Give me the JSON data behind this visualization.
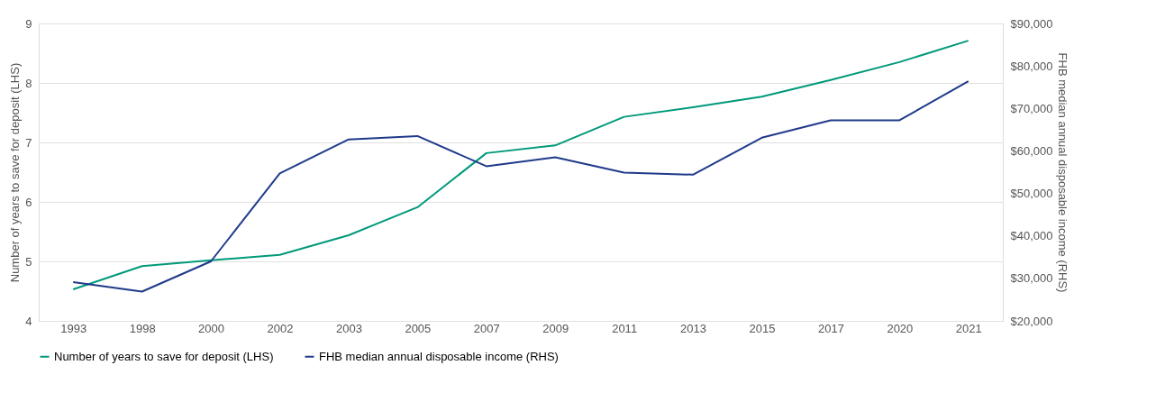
{
  "chart_data": {
    "type": "line",
    "categories": [
      "1993",
      "1998",
      "2000",
      "2002",
      "2003",
      "2005",
      "2007",
      "2009",
      "2011",
      "2013",
      "2015",
      "2017",
      "2020",
      "2021"
    ],
    "ylabel": "Number of years to save for deposit (LHS)",
    "y2label": "FHB median annual disposable income (RHS)",
    "ylim": [
      4,
      9
    ],
    "yticks": [
      4,
      5,
      6,
      7,
      8,
      9
    ],
    "y2lim": [
      20000,
      90000
    ],
    "y2ticks": [
      {
        "value": 20000,
        "label": "$20,000"
      },
      {
        "value": 30000,
        "label": "$30,000"
      },
      {
        "value": 40000,
        "label": "$40,000"
      },
      {
        "value": 50000,
        "label": "$50,000"
      },
      {
        "value": 60000,
        "label": "$60,000"
      },
      {
        "value": 70000,
        "label": "$70,000"
      },
      {
        "value": 80000,
        "label": "$80,000"
      },
      {
        "value": 90000,
        "label": "$90,000"
      }
    ],
    "series": [
      {
        "name": "Number of years to save for deposit (LHS)",
        "color": "#00997a",
        "values": [
          4.53,
          4.92,
          5.02,
          5.11,
          5.44,
          5.91,
          6.82,
          6.95,
          7.43,
          7.59,
          7.77,
          8.05,
          8.35,
          8.71
        ]
      },
      {
        "name": "FHB median annual disposable income (RHS)",
        "color": "#1f3a8a",
        "axis": "y2",
        "values": [
          29100,
          26900,
          34000,
          54700,
          62700,
          63500,
          56400,
          58500,
          54900,
          54400,
          63100,
          67200,
          67200,
          76400
        ]
      }
    ],
    "grid": "y",
    "legend": "bottom",
    "line_style": "solid",
    "marker": "none"
  }
}
